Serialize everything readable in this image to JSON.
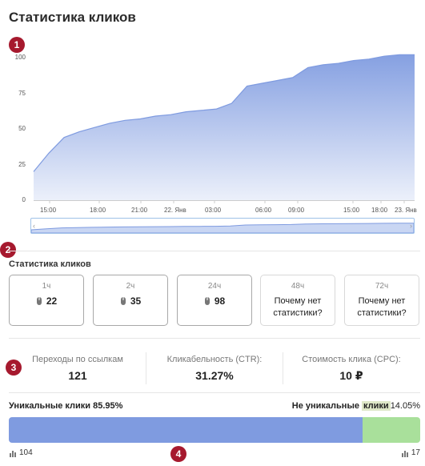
{
  "header": {
    "title": "Статистика кликов"
  },
  "markers": [
    "1",
    "2",
    "3",
    "4"
  ],
  "chart_data": {
    "type": "area",
    "y_ticks": [
      "0",
      "25",
      "50",
      "75",
      "100"
    ],
    "x_ticks": [
      "15:00",
      "18:00",
      "21:00",
      "22. Янв",
      "03:00",
      "06:00",
      "09:00",
      "15:00",
      "18:00",
      "23. Янв"
    ],
    "ylim": [
      0,
      100
    ],
    "values": [
      20,
      33,
      44,
      48,
      51,
      54,
      56,
      57,
      59,
      60,
      62,
      63,
      64,
      68,
      80,
      82,
      84,
      86,
      93,
      95,
      96,
      98,
      99,
      101,
      102,
      102
    ],
    "color": "#7f9be0",
    "grid": false,
    "legend": "none"
  },
  "section": {
    "title": "Статистика кликов"
  },
  "cards": [
    {
      "label": "1ч",
      "value": "22",
      "why": ""
    },
    {
      "label": "2ч",
      "value": "35",
      "why": ""
    },
    {
      "label": "24ч",
      "value": "98",
      "why": ""
    },
    {
      "label": "48ч",
      "value": "",
      "why_line1": "Почему нет",
      "why_line2": "статистики?"
    },
    {
      "label": "72ч",
      "value": "",
      "why_line1": "Почему нет",
      "why_line2": "статистики?"
    }
  ],
  "stats": [
    {
      "label": "Переходы по ссылкам",
      "value": "121"
    },
    {
      "label": "Кликабельность (CTR):",
      "value": "31.27%"
    },
    {
      "label": "Стоимость клика (CPC):",
      "value": "10 ₽"
    }
  ],
  "unique": {
    "left_label": "Уникальные клики",
    "left_percent": "85.95%",
    "right_label_a": "Не уникальные",
    "right_label_b": "клики",
    "right_percent": "14.05%",
    "unique_fraction": 0.8595,
    "unique_count": "104",
    "nonunique_count": "17",
    "colors": {
      "unique": "#7f9be0",
      "nonunique": "#a9e09b"
    }
  }
}
